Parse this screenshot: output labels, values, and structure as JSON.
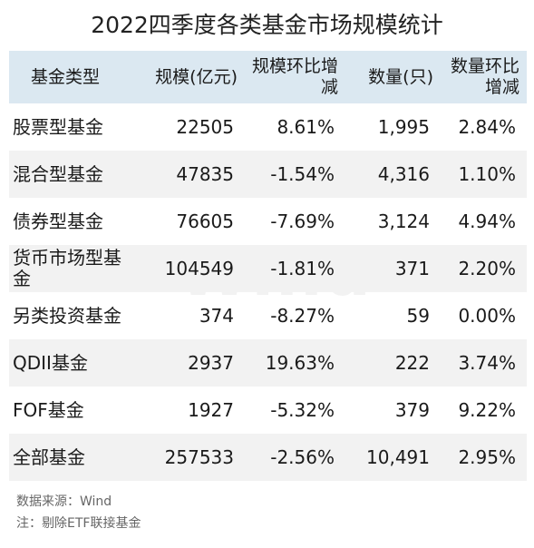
{
  "title": "2022四季度各类基金市场规模统计",
  "watermark": "Wind",
  "chart_data": {
    "type": "table",
    "title": "2022四季度各类基金市场规模统计",
    "columns": [
      "基金类型",
      "规模(亿元)",
      "规模环比增减",
      "数量(只)",
      "数量环比增减"
    ],
    "rows": [
      [
        "股票型基金",
        "22505",
        "8.61%",
        "1,995",
        "2.84%"
      ],
      [
        "混合型基金",
        "47835",
        "-1.54%",
        "4,316",
        "1.10%"
      ],
      [
        "债券型基金",
        "76605",
        "-7.69%",
        "3,124",
        "4.94%"
      ],
      [
        "货币市场型基金",
        "104549",
        "-1.81%",
        "371",
        "2.20%"
      ],
      [
        "另类投资基金",
        "374",
        "-8.27%",
        "59",
        "0.00%"
      ],
      [
        "QDII基金",
        "2937",
        "19.63%",
        "222",
        "3.74%"
      ],
      [
        "FOF基金",
        "1927",
        "-5.32%",
        "379",
        "9.22%"
      ],
      [
        "全部基金",
        "257533",
        "-2.56%",
        "10,491",
        "2.95%"
      ]
    ]
  },
  "notes": {
    "source": "数据来源：Wind",
    "note": "注：剔除ETF联接基金"
  },
  "colors": {
    "header_bg": "#dbe8f1",
    "alt_row_bg": "#f2f2f2"
  }
}
